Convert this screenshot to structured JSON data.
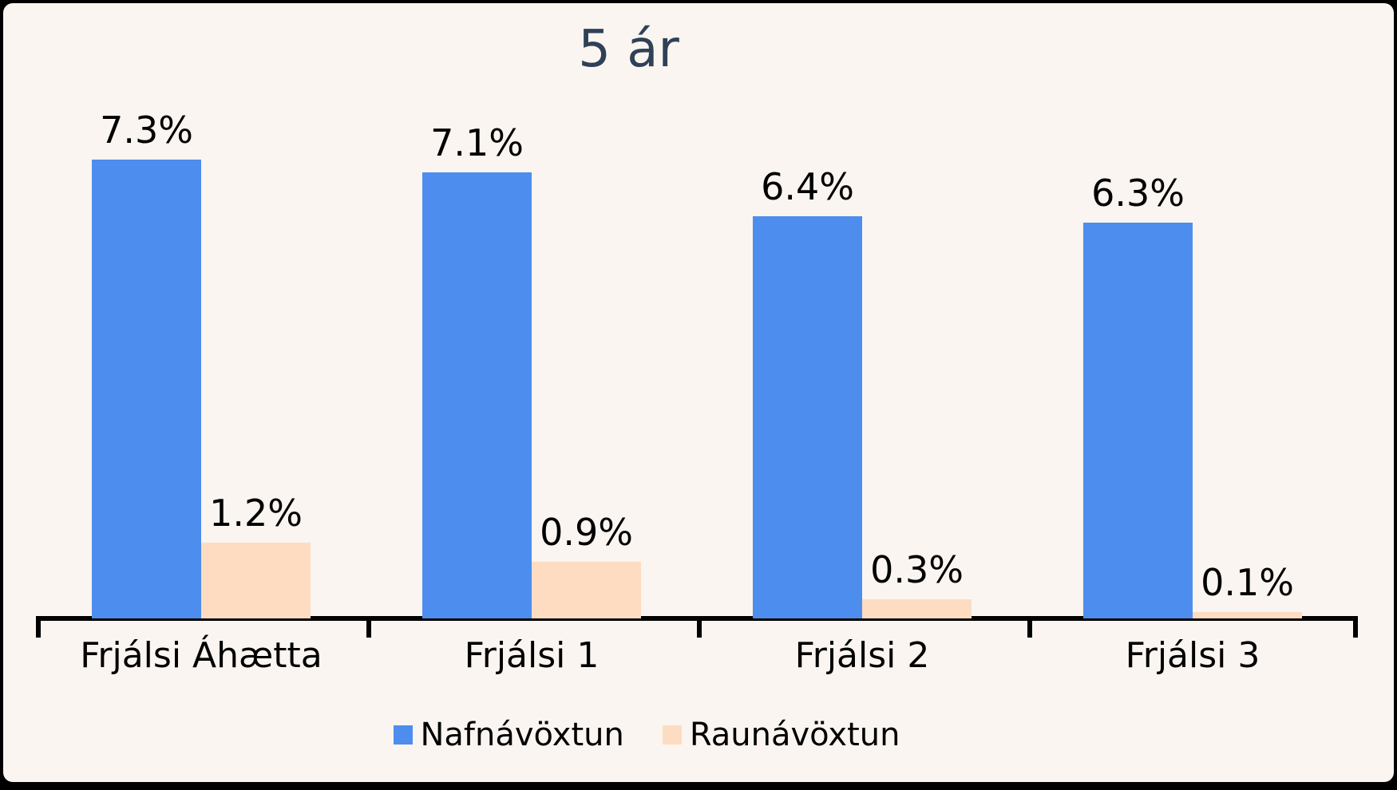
{
  "chart_data": {
    "type": "bar",
    "title": "5 ár",
    "categories": [
      "Frjálsi Áhætta",
      "Frjálsi 1",
      "Frjálsi 2",
      "Frjálsi 3"
    ],
    "series": [
      {
        "name": "Nafnávöxtun",
        "color": "#4D8DEE",
        "values": [
          7.3,
          7.1,
          6.4,
          6.3
        ],
        "labels": [
          "7.3%",
          "7.1%",
          "6.4%",
          "6.3%"
        ]
      },
      {
        "name": "Raunávöxtun",
        "color": "#FDDCC1",
        "values": [
          1.2,
          0.9,
          0.3,
          0.1
        ],
        "labels": [
          "1.2%",
          "0.9%",
          "0.3%",
          "0.1%"
        ]
      }
    ],
    "value_label_format": "{value}%",
    "ylim": [
      0,
      7.8
    ],
    "grid": false,
    "y_axis_visible": false,
    "legend_position": "bottom",
    "colors": {
      "background": "#FAF5F0",
      "frame": "#000000",
      "title": "#2E4157",
      "axis": "#000000",
      "label_text": "#000000"
    }
  }
}
